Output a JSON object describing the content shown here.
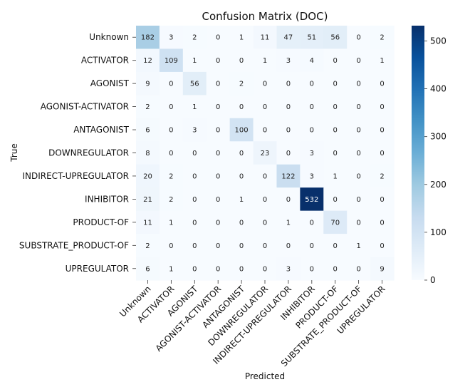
{
  "chart_data": {
    "type": "heatmap",
    "title": "Confusion Matrix (DOC)",
    "xlabel": "Predicted",
    "ylabel": "True",
    "row_labels": [
      "Unknown",
      "ACTIVATOR",
      "AGONIST",
      "AGONIST-ACTIVATOR",
      "ANTAGONIST",
      "DOWNREGULATOR",
      "INDIRECT-UPREGULATOR",
      "INHIBITOR",
      "PRODUCT-OF",
      "SUBSTRATE_PRODUCT-OF",
      "UPREGULATOR"
    ],
    "col_labels": [
      "Unknown",
      "ACTIVATOR",
      "AGONIST",
      "AGONIST-ACTIVATOR",
      "ANTAGONIST",
      "DOWNREGULATOR",
      "INDIRECT-UPREGULATOR",
      "INHIBITOR",
      "PRODUCT-OF",
      "SUBSTRATE_PRODUCT-OF",
      "UPREGULATOR"
    ],
    "values": [
      [
        182,
        3,
        2,
        0,
        1,
        11,
        47,
        51,
        56,
        0,
        2
      ],
      [
        12,
        109,
        1,
        0,
        0,
        1,
        3,
        4,
        0,
        0,
        1
      ],
      [
        9,
        0,
        56,
        0,
        2,
        0,
        0,
        0,
        0,
        0,
        0
      ],
      [
        2,
        0,
        1,
        0,
        0,
        0,
        0,
        0,
        0,
        0,
        0
      ],
      [
        6,
        0,
        3,
        0,
        100,
        0,
        0,
        0,
        0,
        0,
        0
      ],
      [
        8,
        0,
        0,
        0,
        0,
        23,
        0,
        3,
        0,
        0,
        0
      ],
      [
        20,
        2,
        0,
        0,
        0,
        0,
        122,
        3,
        1,
        0,
        2
      ],
      [
        21,
        2,
        0,
        0,
        1,
        0,
        0,
        532,
        0,
        0,
        0
      ],
      [
        11,
        1,
        0,
        0,
        0,
        0,
        1,
        0,
        70,
        0,
        0
      ],
      [
        2,
        0,
        0,
        0,
        0,
        0,
        0,
        0,
        0,
        1,
        0
      ],
      [
        6,
        1,
        0,
        0,
        0,
        0,
        3,
        0,
        0,
        0,
        9
      ]
    ],
    "colorbar": {
      "min": 0,
      "max": 532,
      "ticks": [
        0,
        100,
        200,
        300,
        400,
        500
      ]
    },
    "colormap": "Blues",
    "grid": false
  }
}
